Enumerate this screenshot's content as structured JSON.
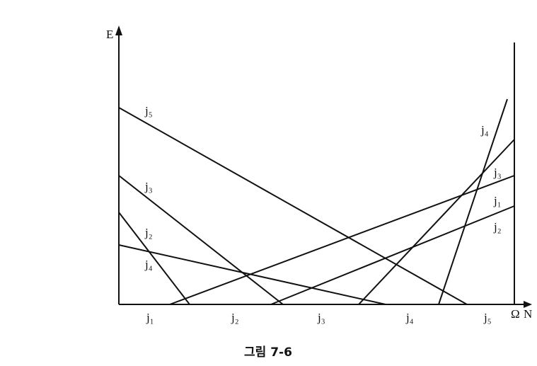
{
  "axes": {
    "y_label": "E",
    "x_label_omega": "Ω",
    "x_label": "N"
  },
  "left_labels": [
    "j₅",
    "j₃",
    "j₂",
    "j₄"
  ],
  "right_labels": [
    "j₄",
    "j₃",
    "j₁",
    "j₂"
  ],
  "bottom_labels": [
    "j₁",
    "j₂",
    "j₃",
    "j₄",
    "j₅"
  ],
  "caption": "그림 7-6"
}
